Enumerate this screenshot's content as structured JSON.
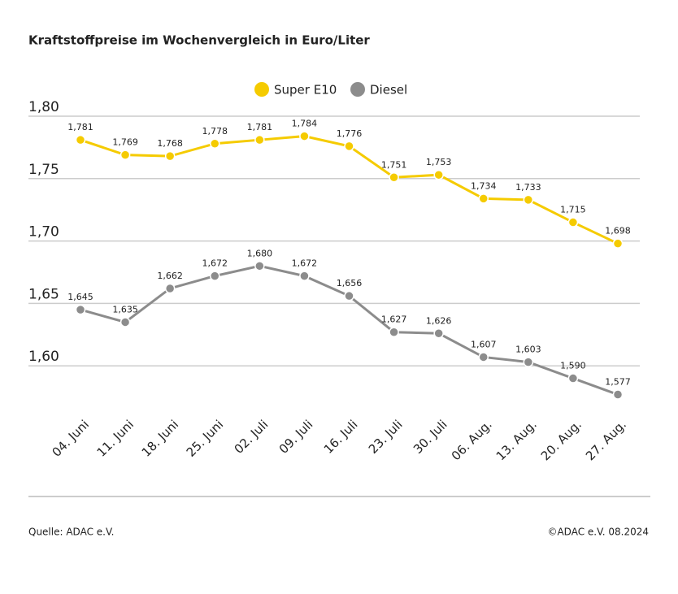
{
  "chart_data": {
    "type": "line",
    "title": "Kraftstoffpreise im Wochenvergleich in Euro/Liter",
    "categories": [
      "04. Juni",
      "11. Juni",
      "18. Juni",
      "25. Juni",
      "02. Juli",
      "09. Juli",
      "16. Juli",
      "23. Juli",
      "30. Juli",
      "06. Aug.",
      "13. Aug.",
      "20. Aug.",
      "27. Aug."
    ],
    "series": [
      {
        "name": "Super E10",
        "color": "#f5cb00",
        "values": [
          1.781,
          1.769,
          1.768,
          1.778,
          1.781,
          1.784,
          1.776,
          1.751,
          1.753,
          1.734,
          1.733,
          1.715,
          1.698
        ],
        "value_labels": [
          "1,781",
          "1,769",
          "1,768",
          "1,778",
          "1,781",
          "1,784",
          "1,776",
          "1,751",
          "1,753",
          "1,734",
          "1,733",
          "1,715",
          "1,698"
        ]
      },
      {
        "name": "Diesel",
        "color": "#8c8c8c",
        "values": [
          1.645,
          1.635,
          1.662,
          1.672,
          1.68,
          1.672,
          1.656,
          1.627,
          1.626,
          1.607,
          1.603,
          1.59,
          1.577
        ],
        "value_labels": [
          "1,645",
          "1,635",
          "1,662",
          "1,672",
          "1,680",
          "1,672",
          "1,656",
          "1,627",
          "1,626",
          "1,607",
          "1,603",
          "1,590",
          "1,577"
        ]
      }
    ],
    "ylim": [
      1.55,
      1.8
    ],
    "yticks": [
      {
        "value": 1.6,
        "label": "1,60"
      },
      {
        "value": 1.65,
        "label": "1,65"
      },
      {
        "value": 1.7,
        "label": "1,70"
      },
      {
        "value": 1.75,
        "label": "1,75"
      },
      {
        "value": 1.8,
        "label": "1,80"
      }
    ],
    "grid": true,
    "legend": "top",
    "source": "Quelle: ADAC e.V.",
    "copyright": "©ADAC e.V. 08.2024"
  }
}
